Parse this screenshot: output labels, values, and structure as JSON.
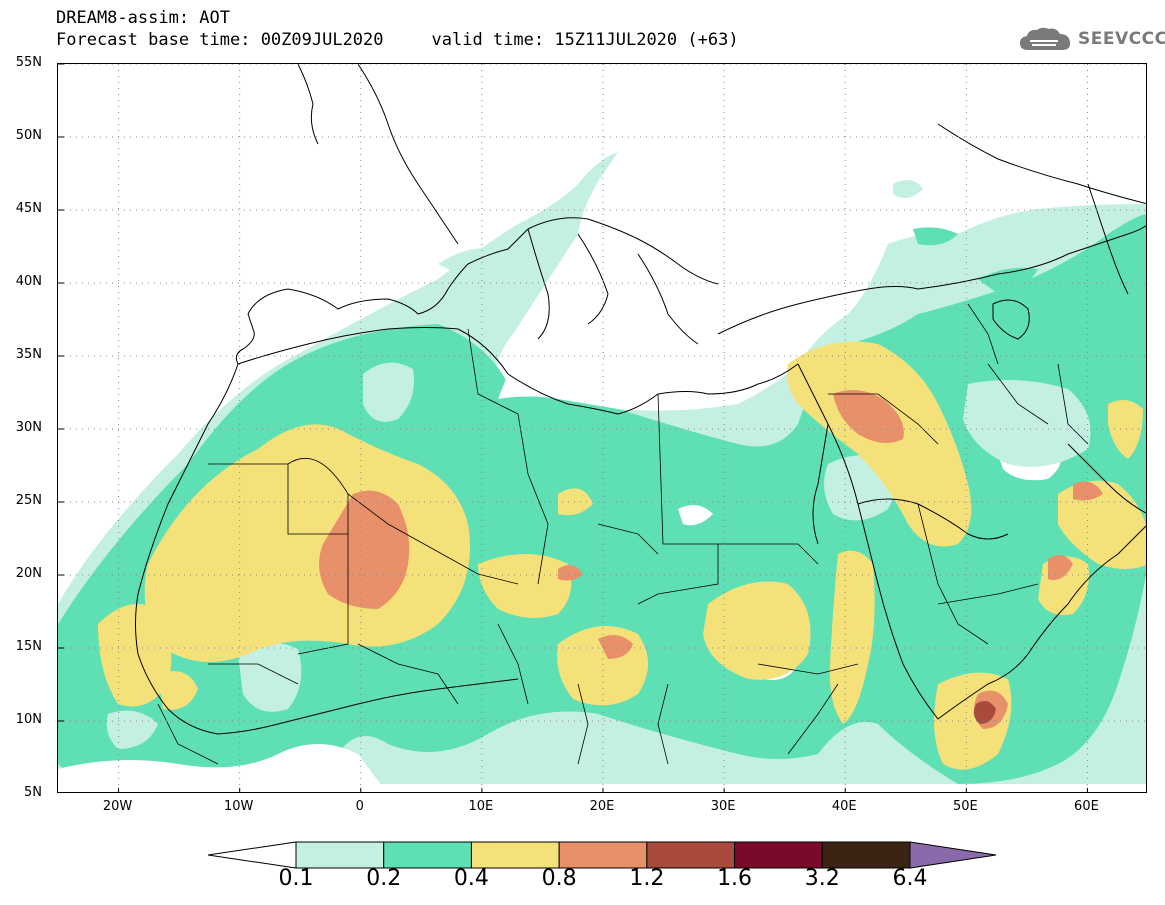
{
  "header": {
    "line1": "DREAM8-assim: AOT",
    "line2": "Forecast base time: 00Z09JUL2020",
    "valid": "valid time: 15Z11JUL2020 (+63)",
    "logo_text": "SEEVCCC",
    "logo_icon": "cloud-icon",
    "logo_color": "#7a7a7a"
  },
  "map": {
    "lat_range": [
      5,
      55
    ],
    "lon_range": [
      -25,
      65
    ],
    "lat_ticks": [
      {
        "value": 55,
        "label": "55N"
      },
      {
        "value": 50,
        "label": "50N"
      },
      {
        "value": 45,
        "label": "45N"
      },
      {
        "value": 40,
        "label": "40N"
      },
      {
        "value": 35,
        "label": "35N"
      },
      {
        "value": 30,
        "label": "30N"
      },
      {
        "value": 25,
        "label": "25N"
      },
      {
        "value": 20,
        "label": "20N"
      },
      {
        "value": 15,
        "label": "15N"
      },
      {
        "value": 10,
        "label": "10N"
      },
      {
        "value": 5,
        "label": "5N"
      }
    ],
    "lon_ticks": [
      {
        "value": -20,
        "label": "20W"
      },
      {
        "value": -10,
        "label": "10W"
      },
      {
        "value": 0,
        "label": "0"
      },
      {
        "value": 10,
        "label": "10E"
      },
      {
        "value": 20,
        "label": "20E"
      },
      {
        "value": 30,
        "label": "30E"
      },
      {
        "value": 40,
        "label": "40E"
      },
      {
        "value": 50,
        "label": "50E"
      },
      {
        "value": 60,
        "label": "60E"
      }
    ],
    "grid": true,
    "field": "AOT"
  },
  "colorbar": {
    "labels": [
      "0.1",
      "0.2",
      "0.4",
      "0.8",
      "1.2",
      "1.6",
      "3.2",
      "6.4"
    ],
    "colors": [
      "#ffffff",
      "#c4f0e4",
      "#5ee0b4",
      "#f5e17a",
      "#e8906a",
      "#a84a3c",
      "#7a0a2a",
      "#3c2414",
      "#8a6aaa"
    ]
  },
  "colors": {
    "aot_0_1": "#c4f0e4",
    "aot_0_2": "#5ee0b4",
    "aot_0_4": "#f5e17a",
    "aot_0_8": "#e8906a",
    "aot_1_2": "#a84a3c"
  }
}
